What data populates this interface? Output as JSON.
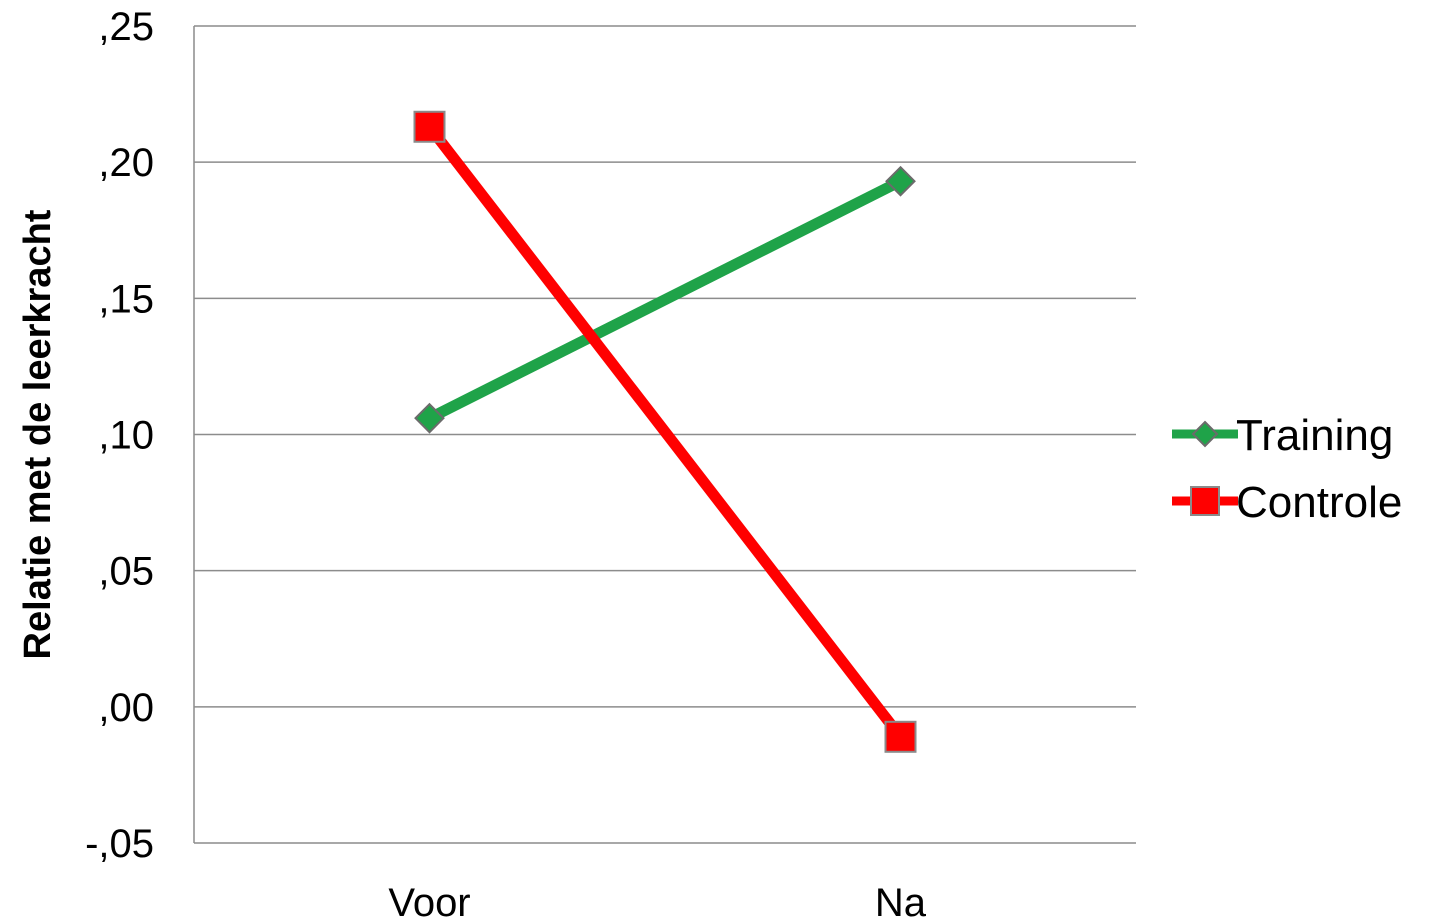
{
  "chart_data": {
    "type": "line",
    "title": "",
    "xlabel": "",
    "ylabel": "Relatie met de leerkracht",
    "categories": [
      "Voor",
      "Na"
    ],
    "ylim": [
      -0.05,
      0.25
    ],
    "yticks": [
      -0.05,
      0.0,
      0.05,
      0.1,
      0.15,
      0.2,
      0.25
    ],
    "ytick_labels": [
      "-,05",
      ",00",
      ",05",
      ",10",
      ",15",
      ",20",
      ",25"
    ],
    "grid": true,
    "legend_position": "right",
    "series": [
      {
        "name": "Training",
        "values": [
          0.106,
          0.193
        ],
        "color": "#1fa349",
        "marker": "diamond"
      },
      {
        "name": "Controle",
        "values": [
          0.213,
          -0.011
        ],
        "color": "#ff0000",
        "marker": "square"
      }
    ]
  }
}
